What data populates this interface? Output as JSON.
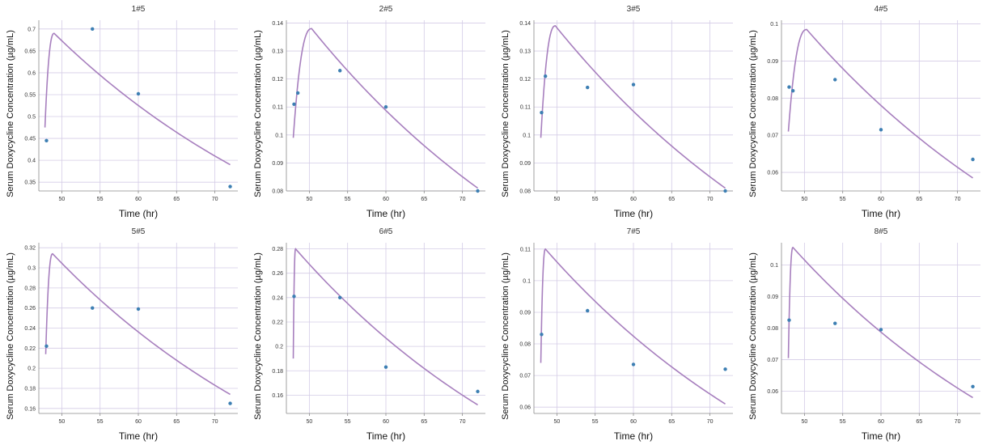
{
  "chart_data": [
    {
      "type": "scatter+line",
      "title": "1#5",
      "xlabel": "Time (hr)",
      "ylabel": "Serum Doxycycline Concentration (µg/mL)",
      "xlim": [
        47,
        73
      ],
      "ylim": [
        0.33,
        0.72
      ],
      "xticks": [
        50,
        55,
        60,
        65,
        70
      ],
      "yticks": [
        0.35,
        0.4,
        0.45,
        0.5,
        0.55,
        0.6,
        0.65,
        0.7
      ],
      "ytick_labels": [
        "0.35",
        "0.4",
        "0.45",
        "0.5",
        "0.55",
        "0.6",
        "0.65",
        "0.7"
      ],
      "grid": true,
      "points": {
        "x": [
          48,
          54,
          60,
          72
        ],
        "y": [
          0.445,
          0.7,
          0.552,
          0.34
        ]
      },
      "curve": {
        "t0": 47.8,
        "tpeak": 49,
        "y0": 0.475,
        "ypeak": 0.69,
        "tend": 72,
        "yend": 0.39
      },
      "colors": {
        "line": "#a77fbe",
        "points": "#3d7fb3"
      }
    },
    {
      "type": "scatter+line",
      "title": "2#5",
      "xlabel": "Time (hr)",
      "ylabel": "Serum Doxycycline Concentration (µg/mL)",
      "xlim": [
        47,
        73
      ],
      "ylim": [
        0.08,
        0.141
      ],
      "xticks": [
        50,
        55,
        60,
        65,
        70
      ],
      "yticks": [
        0.08,
        0.09,
        0.1,
        0.11,
        0.12,
        0.13,
        0.14
      ],
      "ytick_labels": [
        "0.08",
        "0.09",
        "0.1",
        "0.11",
        "0.12",
        "0.13",
        "0.14"
      ],
      "grid": true,
      "points": {
        "x": [
          48,
          48.5,
          54,
          60,
          72
        ],
        "y": [
          0.111,
          0.115,
          0.123,
          0.11,
          0.08
        ]
      },
      "curve": {
        "t0": 47.9,
        "tpeak": 50.3,
        "y0": 0.099,
        "ypeak": 0.138,
        "tend": 72,
        "yend": 0.081
      },
      "colors": {
        "line": "#a77fbe",
        "points": "#3d7fb3"
      }
    },
    {
      "type": "scatter+line",
      "title": "3#5",
      "xlabel": "Time (hr)",
      "ylabel": "Serum Doxycycline Concentration (µg/mL)",
      "xlim": [
        47,
        73
      ],
      "ylim": [
        0.08,
        0.141
      ],
      "xticks": [
        50,
        55,
        60,
        65,
        70
      ],
      "yticks": [
        0.08,
        0.09,
        0.1,
        0.11,
        0.12,
        0.13,
        0.14
      ],
      "ytick_labels": [
        "0.08",
        "0.09",
        "0.1",
        "0.11",
        "0.12",
        "0.13",
        "0.14"
      ],
      "grid": true,
      "points": {
        "x": [
          48,
          48.5,
          54,
          60,
          72
        ],
        "y": [
          0.108,
          0.121,
          0.117,
          0.118,
          0.08
        ]
      },
      "curve": {
        "t0": 47.9,
        "tpeak": 49.8,
        "y0": 0.099,
        "ypeak": 0.139,
        "tend": 72,
        "yend": 0.081
      },
      "colors": {
        "line": "#a77fbe",
        "points": "#3d7fb3"
      }
    },
    {
      "type": "scatter+line",
      "title": "4#5",
      "xlabel": "Time (hr)",
      "ylabel": "Serum Doxycycline Concentration (µg/mL)",
      "xlim": [
        47,
        73
      ],
      "ylim": [
        0.055,
        0.101
      ],
      "xticks": [
        50,
        55,
        60,
        65,
        70
      ],
      "yticks": [
        0.06,
        0.07,
        0.08,
        0.09,
        0.1
      ],
      "ytick_labels": [
        "0.06",
        "0.07",
        "0.08",
        "0.09",
        "0.1"
      ],
      "grid": true,
      "points": {
        "x": [
          48,
          48.5,
          54,
          60,
          72
        ],
        "y": [
          0.083,
          0.082,
          0.085,
          0.0715,
          0.0635
        ]
      },
      "curve": {
        "t0": 47.9,
        "tpeak": 50.3,
        "y0": 0.071,
        "ypeak": 0.0985,
        "tend": 72,
        "yend": 0.0585
      },
      "colors": {
        "line": "#a77fbe",
        "points": "#3d7fb3"
      }
    },
    {
      "type": "scatter+line",
      "title": "5#5",
      "xlabel": "Time (hr)",
      "ylabel": "Serum Doxycycline Concentration (µg/mL)",
      "xlim": [
        47,
        73
      ],
      "ylim": [
        0.155,
        0.325
      ],
      "xticks": [
        50,
        55,
        60,
        65,
        70
      ],
      "yticks": [
        0.16,
        0.18,
        0.2,
        0.22,
        0.24,
        0.26,
        0.28,
        0.3,
        0.32
      ],
      "ytick_labels": [
        "0.16",
        "0.18",
        "0.2",
        "0.22",
        "0.24",
        "0.26",
        "0.28",
        "0.3",
        "0.32"
      ],
      "grid": true,
      "points": {
        "x": [
          48,
          54,
          60,
          72
        ],
        "y": [
          0.222,
          0.26,
          0.259,
          0.165
        ]
      },
      "curve": {
        "t0": 47.9,
        "tpeak": 48.8,
        "y0": 0.214,
        "ypeak": 0.314,
        "tend": 72,
        "yend": 0.174
      },
      "colors": {
        "line": "#a77fbe",
        "points": "#3d7fb3"
      }
    },
    {
      "type": "scatter+line",
      "title": "6#5",
      "xlabel": "Time (hr)",
      "ylabel": "Serum Doxycycline Concentration (µg/mL)",
      "xlim": [
        47,
        73
      ],
      "ylim": [
        0.145,
        0.285
      ],
      "xticks": [
        50,
        55,
        60,
        65,
        70
      ],
      "yticks": [
        0.16,
        0.18,
        0.2,
        0.22,
        0.24,
        0.26,
        0.28
      ],
      "ytick_labels": [
        "0.16",
        "0.18",
        "0.2",
        "0.22",
        "0.24",
        "0.26",
        "0.28"
      ],
      "grid": true,
      "points": {
        "x": [
          48,
          54,
          60,
          72
        ],
        "y": [
          0.241,
          0.24,
          0.183,
          0.163
        ]
      },
      "curve": {
        "t0": 47.9,
        "tpeak": 48.2,
        "y0": 0.19,
        "ypeak": 0.28,
        "tend": 72,
        "yend": 0.152
      },
      "colors": {
        "line": "#a77fbe",
        "points": "#3d7fb3"
      }
    },
    {
      "type": "scatter+line",
      "title": "7#5",
      "xlabel": "Time (hr)",
      "ylabel": "Serum Doxycycline Concentration (µg/mL)",
      "xlim": [
        47,
        73
      ],
      "ylim": [
        0.058,
        0.112
      ],
      "xticks": [
        50,
        55,
        60,
        65,
        70
      ],
      "yticks": [
        0.06,
        0.07,
        0.08,
        0.09,
        0.1,
        0.11
      ],
      "ytick_labels": [
        "0.06",
        "0.07",
        "0.08",
        "0.09",
        "0.1",
        "0.11"
      ],
      "grid": true,
      "points": {
        "x": [
          48,
          54,
          60,
          72
        ],
        "y": [
          0.083,
          0.0905,
          0.0735,
          0.072
        ]
      },
      "curve": {
        "t0": 47.9,
        "tpeak": 48.5,
        "y0": 0.074,
        "ypeak": 0.11,
        "tend": 72,
        "yend": 0.061
      },
      "colors": {
        "line": "#a77fbe",
        "points": "#3d7fb3"
      }
    },
    {
      "type": "scatter+line",
      "title": "8#5",
      "xlabel": "Time (hr)",
      "ylabel": "Serum Doxycycline Concentration (µg/mL)",
      "xlim": [
        47,
        73
      ],
      "ylim": [
        0.053,
        0.107
      ],
      "xticks": [
        50,
        55,
        60,
        65,
        70
      ],
      "yticks": [
        0.06,
        0.07,
        0.08,
        0.09,
        0.1
      ],
      "ytick_labels": [
        "0.06",
        "0.07",
        "0.08",
        "0.09",
        "0.1"
      ],
      "grid": true,
      "points": {
        "x": [
          48,
          54,
          60,
          72
        ],
        "y": [
          0.0825,
          0.0815,
          0.0795,
          0.0615
        ]
      },
      "curve": {
        "t0": 47.9,
        "tpeak": 48.5,
        "y0": 0.0705,
        "ypeak": 0.1055,
        "tend": 72,
        "yend": 0.058
      },
      "colors": {
        "line": "#a77fbe",
        "points": "#3d7fb3"
      }
    }
  ]
}
